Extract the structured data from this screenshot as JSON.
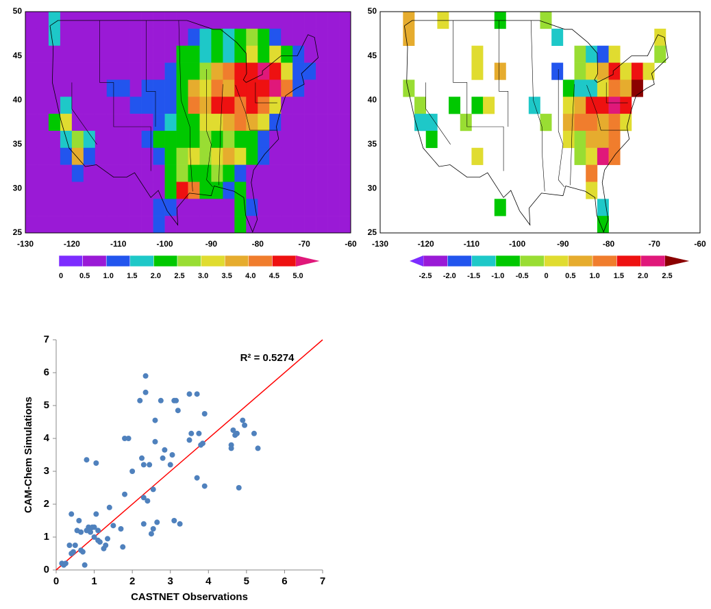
{
  "chart_data": [
    {
      "type": "map",
      "xlim": [
        -130,
        -60
      ],
      "ylim": [
        25,
        50
      ],
      "xticks": [
        -130,
        -120,
        -110,
        -100,
        -90,
        -80,
        -70,
        -60
      ],
      "yticks": [
        25,
        30,
        35,
        40,
        45,
        50
      ],
      "z": [
        [
          0.75,
          0.75,
          1.75,
          0.75,
          0.75,
          0.75,
          0.75,
          0.75,
          0.75,
          0.75,
          0.75,
          0.75,
          0.75,
          0.75,
          0.75,
          0.75,
          0.75,
          0.75,
          0.75,
          0.75,
          0.75,
          0.75,
          0.75,
          0.75,
          0.75,
          0.75,
          0.75,
          0.75
        ],
        [
          0.75,
          0.75,
          1.75,
          0.75,
          0.75,
          0.75,
          0.75,
          0.75,
          0.75,
          0.75,
          0.75,
          0.75,
          0.75,
          0.75,
          1.25,
          1.75,
          2.25,
          1.75,
          2.25,
          2.75,
          2.25,
          1.25,
          0.75,
          0.75,
          0.75,
          0.75,
          0.75,
          0.75
        ],
        [
          0.75,
          0.75,
          0.75,
          0.75,
          0.75,
          0.75,
          0.75,
          0.75,
          0.75,
          0.75,
          0.75,
          0.75,
          0.75,
          2.25,
          2.25,
          1.75,
          2.25,
          1.75,
          2.25,
          3.25,
          2.25,
          3.25,
          2.25,
          1.25,
          0.75,
          0.75,
          0.75,
          0.75
        ],
        [
          0.75,
          0.75,
          0.75,
          0.75,
          0.75,
          0.75,
          0.75,
          0.75,
          0.75,
          0.75,
          0.75,
          0.75,
          1.25,
          2.25,
          2.25,
          2.75,
          3.75,
          4.25,
          4.75,
          4.75,
          5.25,
          4.75,
          3.25,
          1.25,
          1.25,
          0.75,
          0.75,
          0.75
        ],
        [
          0.75,
          0.75,
          0.75,
          0.75,
          0.75,
          0.75,
          0.75,
          1.25,
          1.25,
          0.75,
          1.25,
          1.25,
          1.25,
          2.25,
          3.75,
          3.25,
          4.25,
          3.75,
          4.75,
          4.75,
          4.75,
          5.25,
          4.25,
          1.25,
          0.75,
          0.75,
          0.75,
          0.75
        ],
        [
          0.75,
          0.75,
          0.75,
          1.75,
          0.75,
          0.75,
          0.75,
          0.75,
          0.75,
          1.25,
          1.25,
          1.25,
          1.25,
          2.25,
          4.25,
          3.75,
          4.75,
          4.75,
          4.25,
          4.75,
          4.25,
          3.25,
          0.75,
          0.75,
          0.75,
          0.75,
          0.75,
          0.75
        ],
        [
          0.75,
          0.75,
          2.25,
          3.25,
          0.75,
          0.75,
          0.75,
          0.75,
          0.75,
          0.75,
          0.75,
          1.25,
          1.75,
          2.25,
          2.25,
          3.25,
          3.25,
          3.75,
          4.25,
          3.75,
          3.25,
          1.25,
          0.75,
          0.75,
          0.75,
          0.75,
          0.75,
          0.75
        ],
        [
          0.75,
          0.75,
          0.75,
          1.75,
          2.75,
          1.75,
          0.75,
          0.75,
          0.75,
          0.75,
          1.25,
          2.25,
          2.25,
          2.25,
          2.25,
          2.75,
          2.25,
          2.75,
          2.25,
          2.25,
          1.25,
          0.75,
          0.75,
          0.75,
          0.75,
          0.75,
          0.75,
          0.75
        ],
        [
          0.75,
          0.75,
          0.75,
          1.25,
          3.75,
          1.25,
          0.75,
          0.75,
          0.75,
          0.75,
          0.75,
          1.25,
          2.25,
          2.75,
          3.25,
          2.75,
          3.25,
          3.75,
          3.25,
          2.25,
          1.25,
          0.75,
          0.75,
          0.75,
          0.75,
          0.75,
          0.75,
          0.75
        ],
        [
          0.75,
          0.75,
          0.75,
          0.75,
          1.25,
          0.75,
          0.75,
          0.75,
          0.75,
          0.75,
          0.75,
          0.75,
          2.25,
          2.75,
          2.25,
          2.25,
          2.75,
          2.25,
          1.25,
          0.75,
          0.75,
          0.75,
          0.75,
          0.75,
          0.75,
          0.75,
          0.75,
          0.75
        ],
        [
          0.75,
          0.75,
          0.75,
          0.75,
          0.75,
          0.75,
          0.75,
          0.75,
          0.75,
          0.75,
          0.75,
          0.75,
          2.25,
          4.75,
          4.25,
          2.25,
          2.25,
          1.25,
          2.25,
          0.75,
          0.75,
          0.75,
          0.75,
          0.75,
          0.75,
          0.75,
          0.75,
          0.75
        ],
        [
          0.75,
          0.75,
          0.75,
          0.75,
          0.75,
          0.75,
          0.75,
          0.75,
          0.75,
          0.75,
          0.75,
          1.25,
          1.25,
          0.75,
          0.75,
          0.75,
          0.75,
          0.75,
          2.25,
          1.25,
          0.75,
          0.75,
          0.75,
          0.75,
          0.75,
          0.75,
          0.75,
          0.75
        ],
        [
          0.75,
          0.75,
          0.75,
          0.75,
          0.75,
          0.75,
          0.75,
          0.75,
          0.75,
          0.75,
          0.75,
          1.25,
          0.75,
          0.75,
          0.75,
          0.75,
          0.75,
          0.75,
          2.25,
          0.75,
          0.75,
          0.75,
          0.75,
          0.75,
          0.75,
          0.75,
          0.75,
          0.75
        ]
      ],
      "colorbar": {
        "extend": "max",
        "ticks": [
          0,
          0.5,
          {
            "value": 1,
            "label": "1.0"
          },
          1.5,
          {
            "value": 2,
            "label": "2.0"
          },
          2.5,
          {
            "value": 3,
            "label": "3.0"
          },
          3.5,
          {
            "value": 4,
            "label": "4.0"
          },
          4.5,
          {
            "value": 5,
            "label": "5.0"
          }
        ],
        "colors": [
          "#7d2cff",
          "#9a1ad6",
          "#2255ee",
          "#1ec8c8",
          "#00c800",
          "#99dd33",
          "#e0dc30",
          "#e6ac2e",
          "#f07d2d",
          "#ee1111",
          "#e0187a"
        ]
      }
    },
    {
      "type": "map",
      "xlim": [
        -130,
        -60
      ],
      "ylim": [
        25,
        50
      ],
      "xticks": [
        -130,
        -120,
        -110,
        -100,
        -90,
        -80,
        -70,
        -60
      ],
      "yticks": [
        25,
        30,
        35,
        40,
        45,
        50
      ],
      "z": [
        [
          null,
          null,
          0.75,
          null,
          null,
          0.25,
          null,
          null,
          null,
          null,
          -0.75,
          null,
          null,
          null,
          -0.25,
          null,
          null,
          null,
          null,
          null,
          null,
          null,
          null,
          null,
          null,
          null,
          null,
          null
        ],
        [
          null,
          null,
          0.75,
          null,
          null,
          null,
          null,
          null,
          null,
          null,
          null,
          null,
          null,
          null,
          null,
          -1.25,
          null,
          null,
          null,
          null,
          null,
          null,
          null,
          null,
          0.25,
          null,
          null,
          null
        ],
        [
          null,
          null,
          null,
          null,
          null,
          null,
          null,
          null,
          0.25,
          null,
          null,
          null,
          null,
          null,
          null,
          null,
          null,
          -0.25,
          -1.25,
          -1.75,
          0.25,
          null,
          null,
          null,
          -0.25,
          null,
          null,
          null
        ],
        [
          null,
          null,
          null,
          null,
          null,
          null,
          null,
          null,
          0.25,
          null,
          0.75,
          null,
          null,
          null,
          null,
          -1.75,
          null,
          -0.25,
          0.25,
          0.75,
          1.75,
          0.25,
          1.75,
          0.25,
          null,
          null,
          null,
          null
        ],
        [
          null,
          null,
          -0.25,
          null,
          null,
          null,
          null,
          null,
          null,
          null,
          null,
          null,
          null,
          null,
          null,
          null,
          -0.75,
          -1.25,
          -1.25,
          0.25,
          1.25,
          0.75,
          2.75,
          null,
          null,
          null,
          null,
          null
        ],
        [
          null,
          null,
          null,
          -0.25,
          null,
          null,
          -0.75,
          null,
          -0.75,
          0.25,
          null,
          null,
          null,
          -1.25,
          null,
          null,
          0.25,
          0.75,
          1.75,
          1.75,
          2.25,
          1.75,
          null,
          null,
          null,
          null,
          null,
          null
        ],
        [
          null,
          null,
          null,
          -1.25,
          -1.25,
          null,
          null,
          -0.25,
          null,
          null,
          null,
          null,
          null,
          null,
          -0.25,
          null,
          0.75,
          1.25,
          1.25,
          0.75,
          1.25,
          0.25,
          null,
          null,
          null,
          null,
          null,
          null
        ],
        [
          null,
          null,
          null,
          null,
          -0.75,
          null,
          null,
          null,
          null,
          null,
          null,
          null,
          null,
          null,
          null,
          null,
          0.25,
          -0.25,
          0.75,
          0.75,
          1.25,
          null,
          null,
          null,
          null,
          null,
          null,
          null
        ],
        [
          null,
          null,
          null,
          null,
          null,
          null,
          null,
          null,
          0.25,
          null,
          null,
          null,
          null,
          null,
          null,
          null,
          null,
          -0.25,
          0.25,
          2.25,
          1.25,
          null,
          null,
          null,
          null,
          null,
          null,
          null
        ],
        [
          null,
          null,
          null,
          null,
          null,
          null,
          null,
          null,
          null,
          null,
          null,
          null,
          null,
          null,
          null,
          null,
          null,
          null,
          1.25,
          null,
          null,
          null,
          null,
          null,
          null,
          null,
          null,
          null
        ],
        [
          null,
          null,
          null,
          null,
          null,
          null,
          null,
          null,
          null,
          null,
          null,
          null,
          null,
          null,
          null,
          null,
          null,
          null,
          0.25,
          null,
          null,
          null,
          null,
          null,
          null,
          null,
          null,
          null
        ],
        [
          null,
          null,
          null,
          null,
          null,
          null,
          null,
          null,
          null,
          null,
          -0.75,
          null,
          null,
          null,
          null,
          null,
          null,
          null,
          null,
          -1.25,
          null,
          null,
          null,
          null,
          null,
          null,
          null,
          null
        ],
        [
          null,
          null,
          null,
          null,
          null,
          null,
          null,
          null,
          null,
          null,
          null,
          null,
          null,
          null,
          null,
          null,
          null,
          null,
          null,
          -0.75,
          null,
          null,
          null,
          null,
          null,
          null,
          null,
          null
        ]
      ],
      "colorbar": {
        "extend": "both",
        "ticks": [
          -2.5,
          {
            "value": -2,
            "label": "-2.0"
          },
          -1.5,
          {
            "value": -1,
            "label": "-1.0"
          },
          -0.5,
          0,
          0.5,
          {
            "value": 1,
            "label": "1.0"
          },
          1.5,
          {
            "value": 2,
            "label": "2.0"
          },
          2.5
        ],
        "colors": [
          "#7d2cff",
          "#9a1ad6",
          "#2255ee",
          "#1ec8c8",
          "#00c800",
          "#99dd33",
          "#e0dc30",
          "#e6ac2e",
          "#f07d2d",
          "#ee1111",
          "#e0187a",
          "#8b0000"
        ]
      }
    },
    {
      "type": "scatter",
      "xlabel": "CASTNET Observations",
      "ylabel": "CAM-Chem Simulations",
      "annotation": "R² = 0.5274",
      "color": "#4f81bd",
      "identity_line_color": "#ff0000",
      "xlim": [
        0,
        7
      ],
      "ylim": [
        0,
        7
      ],
      "xticks": [
        0,
        1,
        2,
        3,
        4,
        5,
        6,
        7
      ],
      "yticks": [
        0,
        1,
        2,
        3,
        4,
        5,
        6,
        7
      ],
      "x": [
        0.15,
        0.2,
        0.25,
        0.35,
        0.4,
        0.4,
        0.45,
        0.5,
        0.55,
        0.6,
        0.65,
        0.65,
        0.7,
        0.75,
        0.8,
        0.8,
        0.85,
        0.9,
        0.9,
        0.95,
        1.0,
        1.0,
        1.05,
        1.05,
        1.1,
        1.1,
        1.15,
        1.25,
        1.3,
        1.35,
        1.4,
        1.5,
        1.7,
        1.75,
        1.8,
        1.8,
        1.9,
        2.0,
        2.2,
        2.25,
        2.3,
        2.3,
        2.3,
        2.35,
        2.35,
        2.4,
        2.45,
        2.5,
        2.55,
        2.55,
        2.6,
        2.6,
        2.65,
        2.75,
        2.8,
        2.85,
        3.0,
        3.05,
        3.1,
        3.1,
        3.15,
        3.2,
        3.25,
        3.5,
        3.5,
        3.55,
        3.7,
        3.7,
        3.75,
        3.8,
        3.85,
        3.9,
        3.9,
        4.6,
        4.6,
        4.65,
        4.7,
        4.75,
        4.8,
        4.9,
        4.95,
        5.2,
        5.3
      ],
      "y": [
        0.2,
        0.15,
        0.2,
        0.75,
        1.7,
        0.5,
        0.55,
        0.75,
        1.2,
        1.5,
        1.15,
        0.6,
        0.55,
        0.15,
        3.35,
        1.2,
        1.3,
        1.25,
        1.15,
        1.3,
        1.0,
        1.3,
        1.7,
        3.25,
        0.9,
        1.2,
        0.85,
        0.65,
        0.75,
        0.95,
        1.9,
        1.35,
        1.25,
        0.7,
        2.3,
        4.0,
        4.0,
        3.0,
        5.15,
        3.4,
        3.2,
        1.4,
        2.2,
        5.4,
        5.9,
        2.1,
        3.2,
        1.1,
        1.25,
        2.45,
        3.9,
        4.55,
        1.45,
        5.15,
        3.4,
        3.65,
        3.2,
        3.5,
        5.15,
        1.5,
        5.15,
        4.85,
        1.4,
        5.35,
        3.95,
        4.15,
        5.35,
        2.8,
        4.15,
        3.8,
        3.85,
        2.55,
        4.75,
        3.8,
        3.7,
        4.25,
        4.1,
        4.15,
        2.5,
        4.55,
        4.4,
        4.15,
        3.7
      ]
    }
  ]
}
